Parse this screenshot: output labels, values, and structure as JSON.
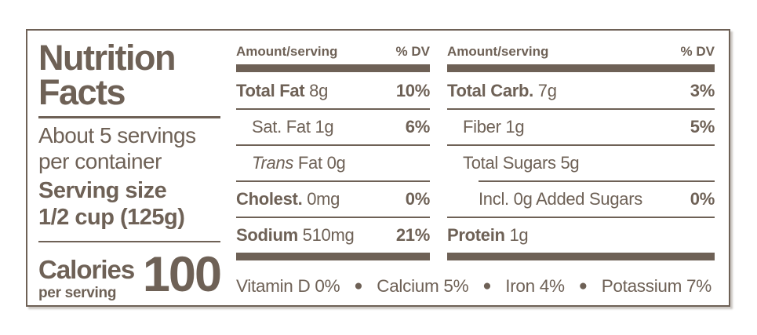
{
  "colors": {
    "ink": "#6e6156",
    "paper": "#ffffff"
  },
  "label": {
    "title_line1": "Nutrition",
    "title_line2": "Facts",
    "servings_line1": "About 5 servings",
    "servings_line2": "per container",
    "serving_size_label": "Serving size",
    "serving_size_value": "1/2 cup (125g)",
    "calories_label": "Calories",
    "calories_sub": "per serving",
    "calories_value": "100"
  },
  "columns": [
    {
      "header_left": "Amount/serving",
      "header_right": "% DV",
      "rows": [
        {
          "parts": [
            {
              "t": "Total Fat",
              "s": "b"
            },
            {
              "t": " 8g",
              "s": "r"
            }
          ],
          "dv": "10%",
          "indent": 0,
          "rule": "none"
        },
        {
          "parts": [
            {
              "t": "Sat. Fat 1g",
              "s": "r"
            }
          ],
          "dv": "6%",
          "indent": 1,
          "rule": "full"
        },
        {
          "parts": [
            {
              "t": "Trans",
              "s": "i"
            },
            {
              "t": " Fat 0g",
              "s": "r"
            }
          ],
          "dv": "",
          "indent": 1,
          "rule": "full"
        },
        {
          "parts": [
            {
              "t": "Cholest.",
              "s": "b"
            },
            {
              "t": " 0mg",
              "s": "r"
            }
          ],
          "dv": "0%",
          "indent": 0,
          "rule": "full"
        },
        {
          "parts": [
            {
              "t": "Sodium",
              "s": "b"
            },
            {
              "t": " 510mg",
              "s": "r"
            }
          ],
          "dv": "21%",
          "indent": 0,
          "rule": "full"
        }
      ]
    },
    {
      "header_left": "Amount/serving",
      "header_right": "% DV",
      "rows": [
        {
          "parts": [
            {
              "t": "Total Carb.",
              "s": "b"
            },
            {
              "t": " 7g",
              "s": "r"
            }
          ],
          "dv": "3%",
          "indent": 0,
          "rule": "none"
        },
        {
          "parts": [
            {
              "t": "Fiber 1g",
              "s": "r"
            }
          ],
          "dv": "5%",
          "indent": 1,
          "rule": "full"
        },
        {
          "parts": [
            {
              "t": "Total Sugars 5g",
              "s": "r"
            }
          ],
          "dv": "",
          "indent": 1,
          "rule": "full"
        },
        {
          "parts": [
            {
              "t": "Incl. 0g Added Sugars",
              "s": "r"
            }
          ],
          "dv": "0%",
          "indent": 2,
          "rule": "indent"
        },
        {
          "parts": [
            {
              "t": "Protein",
              "s": "b"
            },
            {
              "t": " 1g",
              "s": "r"
            }
          ],
          "dv": "",
          "indent": 0,
          "rule": "full"
        }
      ]
    }
  ],
  "micronutrients": [
    {
      "name": "Vitamin D",
      "dv": "0%"
    },
    {
      "name": "Calcium",
      "dv": "5%"
    },
    {
      "name": "Iron",
      "dv": "4%"
    },
    {
      "name": "Potassium",
      "dv": "7%"
    }
  ]
}
